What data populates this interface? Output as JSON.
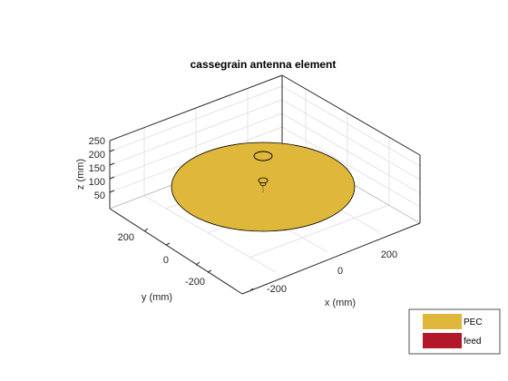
{
  "title": "cassegrain antenna element",
  "axes": {
    "x_label": "x (mm)",
    "y_label": "y (mm)",
    "z_label": "z (mm)",
    "x_ticks": [
      "-200",
      "0",
      "200"
    ],
    "y_ticks": [
      "200",
      "0",
      "-200"
    ],
    "z_ticks": [
      "250",
      "200",
      "150",
      "100",
      "50"
    ]
  },
  "legend": [
    {
      "label": "PEC",
      "color": "#dfb73a"
    },
    {
      "label": "feed",
      "color": "#b3172a"
    }
  ],
  "colors": {
    "pec": "#dfb73a",
    "feed": "#b3172a",
    "grid": "#e3e3e3",
    "axis": "#262626"
  }
}
